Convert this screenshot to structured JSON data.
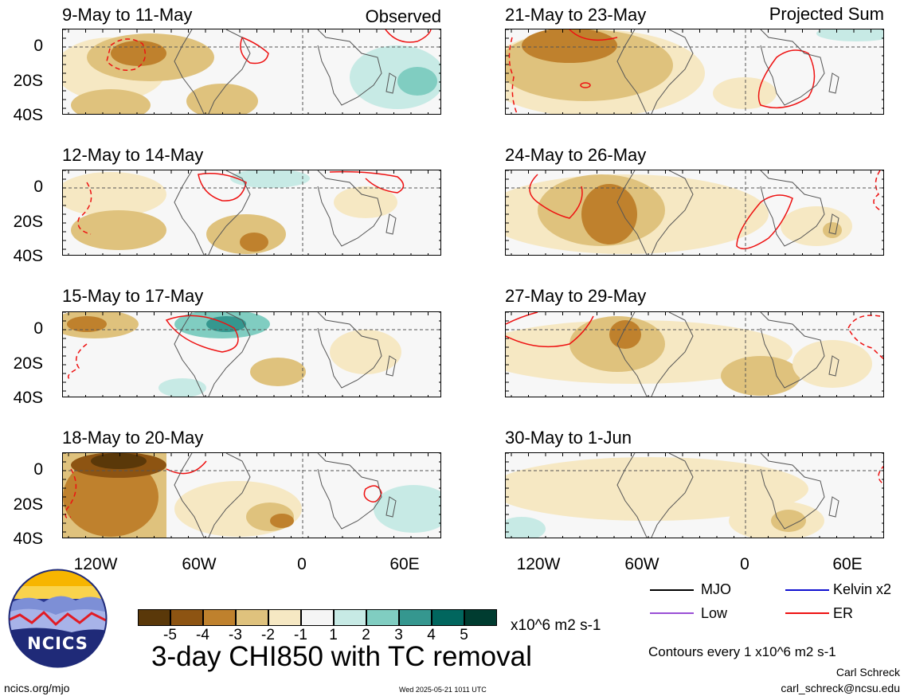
{
  "panels_left": [
    {
      "title": "9-May to 11-May",
      "tag": "Observed"
    },
    {
      "title": "12-May to 14-May",
      "tag": ""
    },
    {
      "title": "15-May to 17-May",
      "tag": ""
    },
    {
      "title": "18-May to 20-May",
      "tag": ""
    }
  ],
  "panels_right": [
    {
      "title": "21-May to 23-May",
      "tag": "Projected Sum"
    },
    {
      "title": "24-May to 26-May",
      "tag": ""
    },
    {
      "title": "27-May to 29-May",
      "tag": ""
    },
    {
      "title": "30-May to 1-Jun",
      "tag": ""
    }
  ],
  "y_ticks": [
    "0",
    "20S",
    "40S"
  ],
  "x_ticks": [
    "120W",
    "60W",
    "0",
    "60E"
  ],
  "legend": {
    "mjo": "MJO",
    "kelvin": "Kelvin x2",
    "low": "Low",
    "er": "ER",
    "colors": {
      "mjo": "#000000",
      "kelvin": "#1010d0",
      "low": "#9a4fd6",
      "er": "#ee1111"
    }
  },
  "colorbar": {
    "labels": [
      "-5",
      "-4",
      "-3",
      "-2",
      "-1",
      "1",
      "2",
      "3",
      "4",
      "5"
    ],
    "colors": [
      "#5a3809",
      "#8d5412",
      "#bf812d",
      "#dfc27d",
      "#f6e8c3",
      "#f5f5f5",
      "#c7eae5",
      "#80cdc1",
      "#35978f",
      "#01665e",
      "#003c30"
    ],
    "unit": "x10^6 m2 s-1"
  },
  "main_title": "3-day CHI850 with TC removal",
  "contour_note": "Contours every 1 x10^6 m2 s-1",
  "author": "Carl Schreck",
  "email": "carl_schreck@ncsu.edu",
  "site": "ncics.org/mjo",
  "timestamp": "Wed 2025-05-21 1011 UTC",
  "logo_text": "NCICS"
}
